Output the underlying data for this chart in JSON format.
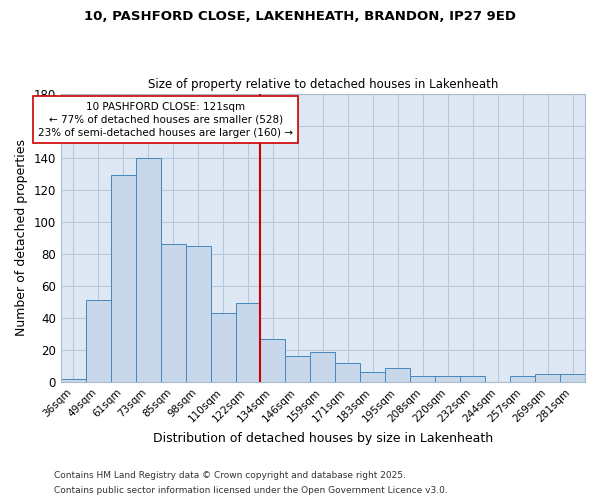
{
  "title_line1": "10, PASHFORD CLOSE, LAKENHEATH, BRANDON, IP27 9ED",
  "title_line2": "Size of property relative to detached houses in Lakenheath",
  "xlabel": "Distribution of detached houses by size in Lakenheath",
  "ylabel": "Number of detached properties",
  "bar_labels": [
    "36sqm",
    "49sqm",
    "61sqm",
    "73sqm",
    "85sqm",
    "98sqm",
    "110sqm",
    "122sqm",
    "134sqm",
    "146sqm",
    "159sqm",
    "171sqm",
    "183sqm",
    "195sqm",
    "208sqm",
    "220sqm",
    "232sqm",
    "244sqm",
    "257sqm",
    "269sqm",
    "281sqm"
  ],
  "bar_values": [
    2,
    51,
    129,
    140,
    86,
    85,
    43,
    49,
    27,
    16,
    19,
    12,
    6,
    9,
    4,
    4,
    4,
    0,
    4,
    5,
    5
  ],
  "bar_color": "#c8d8ea",
  "bar_edge_color": "#4488bb",
  "vline_x": 7.5,
  "vline_color": "#cc0000",
  "annotation_text": "10 PASHFORD CLOSE: 121sqm\n← 77% of detached houses are smaller (528)\n23% of semi-detached houses are larger (160) →",
  "annotation_box_color": "#ffffff",
  "annotation_box_edge": "#cc0000",
  "ylim": [
    0,
    180
  ],
  "yticks": [
    0,
    20,
    40,
    60,
    80,
    100,
    120,
    140,
    160,
    180
  ],
  "footnote1": "Contains HM Land Registry data © Crown copyright and database right 2025.",
  "footnote2": "Contains public sector information licensed under the Open Government Licence v3.0.",
  "bg_color": "#dde8f4",
  "fig_bg_color": "#ffffff",
  "grid_color": "#b8c8d8"
}
